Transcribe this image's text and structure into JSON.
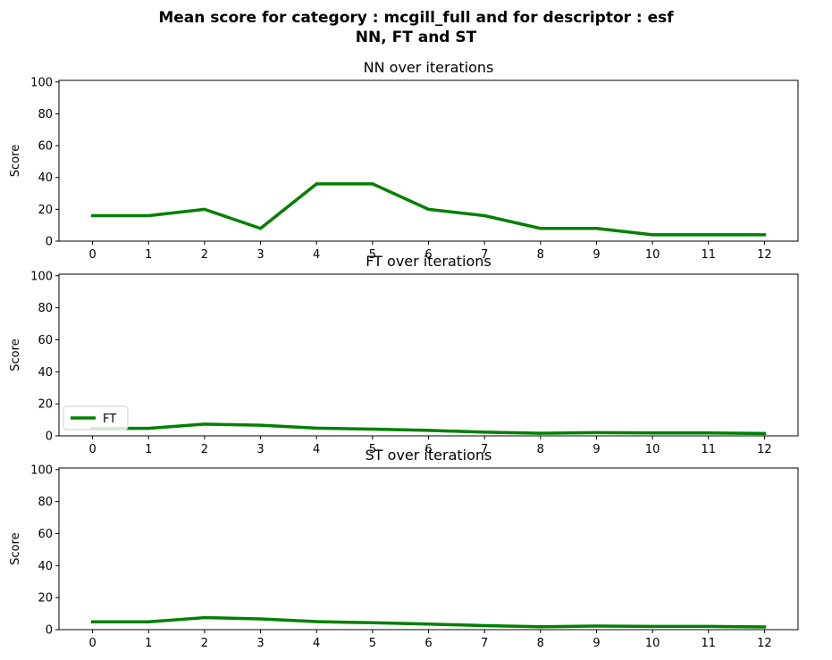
{
  "figure": {
    "title_line1": "Mean score for category : mcgill_full and for descriptor : esf",
    "title_line2": "NN, FT and ST"
  },
  "chart_data": [
    {
      "type": "line",
      "title": "NN over iterations",
      "xlabel": "",
      "ylabel": "Score",
      "x": [
        0,
        1,
        2,
        3,
        4,
        5,
        6,
        7,
        8,
        9,
        10,
        11,
        12
      ],
      "xticks": [
        0,
        1,
        2,
        3,
        4,
        5,
        6,
        7,
        8,
        9,
        10,
        11,
        12
      ],
      "yticks": [
        0,
        20,
        40,
        60,
        80,
        100
      ],
      "xlim": [
        -0.6,
        12.6
      ],
      "ylim": [
        0,
        101
      ],
      "grid": false,
      "legend": false,
      "series": [
        {
          "name": "",
          "color": "#008000",
          "values": [
            16,
            16,
            20,
            8,
            36,
            36,
            20,
            16,
            8,
            8,
            4,
            4,
            4
          ]
        }
      ]
    },
    {
      "type": "line",
      "title": "FT over iterations",
      "xlabel": "",
      "ylabel": "Score",
      "x": [
        0,
        1,
        2,
        3,
        4,
        5,
        6,
        7,
        8,
        9,
        10,
        11,
        12
      ],
      "xticks": [
        0,
        1,
        2,
        3,
        4,
        5,
        6,
        7,
        8,
        9,
        10,
        11,
        12
      ],
      "yticks": [
        0,
        20,
        40,
        60,
        80,
        100
      ],
      "xlim": [
        -0.6,
        12.6
      ],
      "ylim": [
        0,
        101
      ],
      "grid": false,
      "legend": true,
      "legend_position": "lower-left",
      "series": [
        {
          "name": "FT",
          "color": "#008000",
          "values": [
            4.7,
            4.7,
            7.3,
            6.6,
            4.8,
            4.2,
            3.4,
            2.3,
            1.6,
            2.0,
            1.8,
            1.8,
            1.5
          ]
        }
      ]
    },
    {
      "type": "line",
      "title": "ST over iterations",
      "xlabel": "",
      "ylabel": "Score",
      "x": [
        0,
        1,
        2,
        3,
        4,
        5,
        6,
        7,
        8,
        9,
        10,
        11,
        12
      ],
      "xticks": [
        0,
        1,
        2,
        3,
        4,
        5,
        6,
        7,
        8,
        9,
        10,
        11,
        12
      ],
      "yticks": [
        0,
        20,
        40,
        60,
        80,
        100
      ],
      "xlim": [
        -0.6,
        12.6
      ],
      "ylim": [
        0,
        101
      ],
      "grid": false,
      "legend": false,
      "series": [
        {
          "name": "",
          "color": "#008000",
          "values": [
            4.9,
            4.9,
            7.5,
            6.7,
            5.0,
            4.3,
            3.5,
            2.5,
            1.8,
            2.2,
            2.0,
            2.0,
            1.7
          ]
        }
      ]
    }
  ]
}
